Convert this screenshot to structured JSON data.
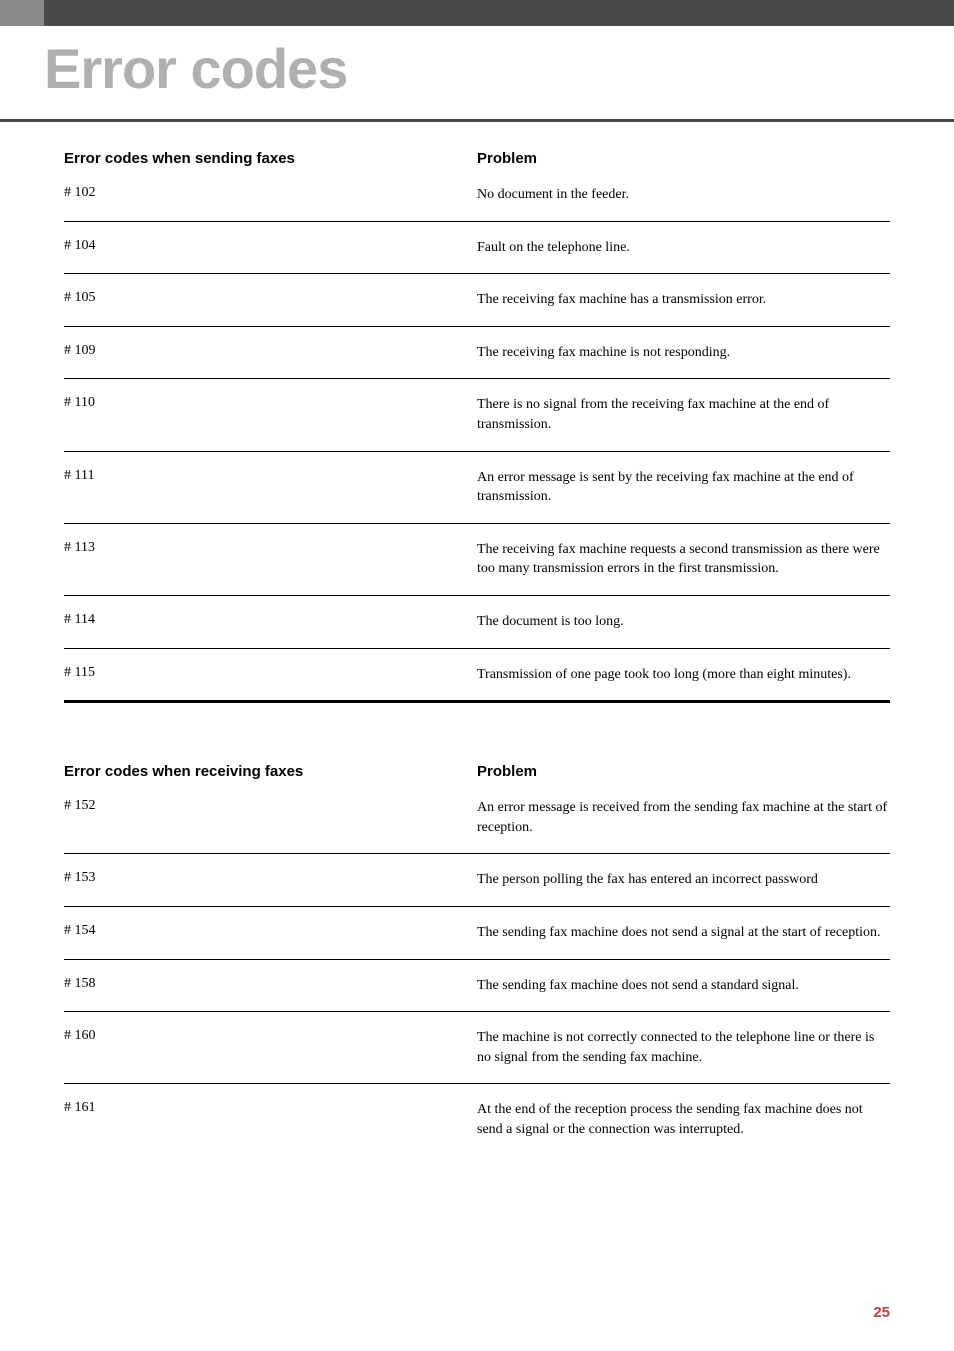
{
  "page_title": "Error codes",
  "page_number": "25",
  "tables": {
    "sending": {
      "header_left": "Error codes when sending faxes",
      "header_right": "Problem",
      "rows": [
        {
          "code": "# 102",
          "problem": "No document in the feeder."
        },
        {
          "code": "# 104",
          "problem": "Fault on the telephone line."
        },
        {
          "code": "# 105",
          "problem": "The receiving fax machine has a transmission error."
        },
        {
          "code": "# 109",
          "problem": "The receiving fax machine is not responding."
        },
        {
          "code": "# 110",
          "problem": "There is no signal from the receiving fax machine at the end of transmission."
        },
        {
          "code": "# 111",
          "problem": "An error message is sent by the receiving fax machine at the end of transmission."
        },
        {
          "code": "# 113",
          "problem": "The receiving fax machine requests a second transmission as there were too many transmission errors in the first transmission."
        },
        {
          "code": "# 114",
          "problem": "The document is too long."
        },
        {
          "code": "# 115",
          "problem": "Transmission of one page took too long (more than eight minutes)."
        }
      ]
    },
    "receiving": {
      "header_left": "Error codes when receiving faxes",
      "header_right": "Problem",
      "rows": [
        {
          "code": "# 152",
          "problem": "An error message is received from the sending fax machine at the start of reception."
        },
        {
          "code": "# 153",
          "problem": "The person polling the fax has entered an incorrect password"
        },
        {
          "code": "# 154",
          "problem": "The sending fax machine does not send a signal at the start of reception."
        },
        {
          "code": "# 158",
          "problem": "The sending fax machine does not send a standard signal."
        },
        {
          "code": "# 160",
          "problem": "The machine is not correctly connected to the telephone line or there is no signal from the sending fax machine."
        },
        {
          "code": "# 161",
          "problem": "At the end of the reception process the sending fax machine does not send a signal or the connection was interrupted."
        }
      ]
    }
  },
  "styles": {
    "title_color": "#b0b0b0",
    "header_bar_color": "#4a4a4a",
    "header_bar_light": "#8a8a8a",
    "page_number_color": "#c04040",
    "border_color": "#000000",
    "background_color": "#ffffff",
    "title_fontsize": 56,
    "header_fontsize": 15,
    "body_fontsize": 14
  }
}
